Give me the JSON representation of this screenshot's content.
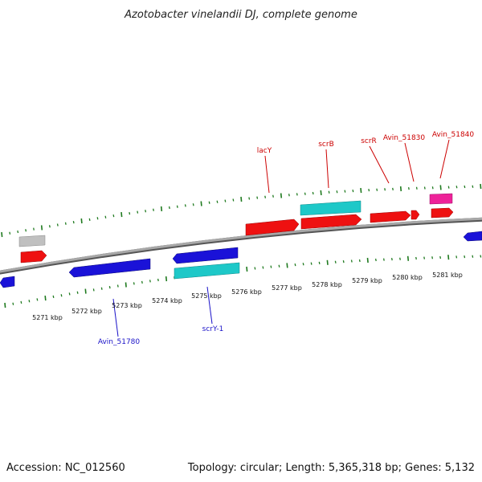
{
  "title": "Azotobacter vinelandii DJ, complete genome",
  "footer": {
    "accession": "Accession: NC_012560",
    "summary": "Topology: circular; Length: 5,365,318 bp; Genes: 5,132"
  },
  "colors": {
    "backbone": "#8a8a8a",
    "tick": "#1f7a1f",
    "forward_gene": "#ee1111",
    "reverse_gene": "#1a12d8",
    "rna_gene": "#1ec8c8",
    "pseudo_gene": "#c0c0c0",
    "other_gene": "#ee2299",
    "forward_label": "#cc0000",
    "reverse_label": "#1a12c8"
  },
  "tick_labels": [
    "5271 kbp",
    "5272 kbp",
    "5273 kbp",
    "5274 kbp",
    "5275 kbp",
    "5276 kbp",
    "5277 kbp",
    "5278 kbp",
    "5279 kbp",
    "5280 kbp",
    "5281 kbp"
  ],
  "gene_labels_forward": [
    "lacY",
    "scrB",
    "scrR",
    "Avin_51830",
    "Avin_51840"
  ],
  "gene_labels_reverse": [
    "Avin_51780",
    "scrY-1"
  ]
}
